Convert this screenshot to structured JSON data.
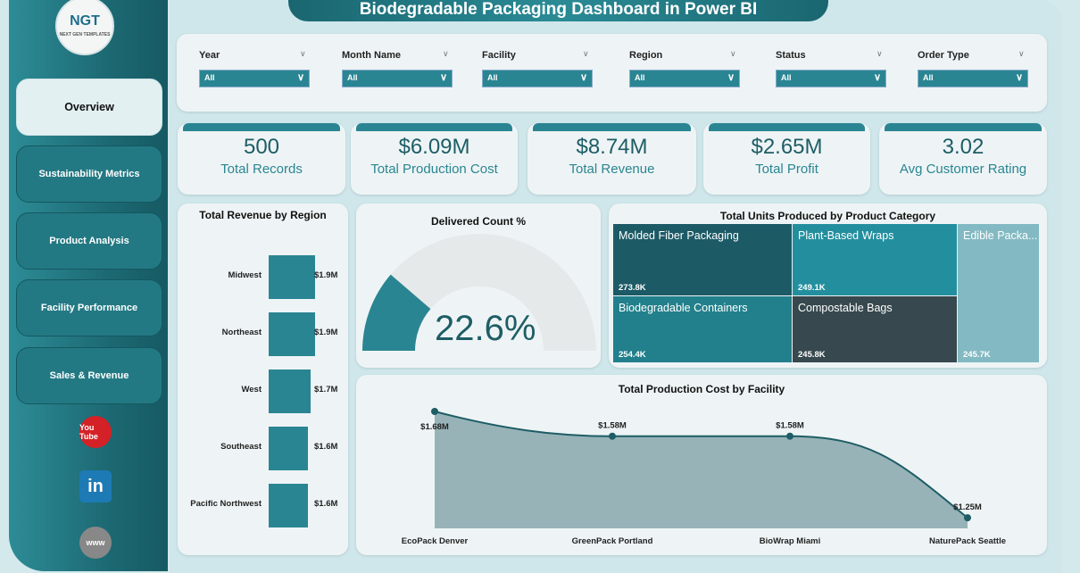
{
  "title": "Biodegradable Packaging Dashboard in Power BI",
  "logo": {
    "text": "NGT",
    "sub": "NEXT GEN TEMPLATES"
  },
  "nav": [
    {
      "label": "Overview",
      "active": true
    },
    {
      "label": "Sustainability Metrics"
    },
    {
      "label": "Product Analysis"
    },
    {
      "label": "Facility Performance"
    },
    {
      "label": "Sales & Revenue"
    }
  ],
  "social": [
    {
      "icon": "youtube-icon",
      "label": "You Tube"
    },
    {
      "icon": "linkedin-icon",
      "label": "in"
    },
    {
      "icon": "globe-www-icon",
      "label": "www"
    }
  ],
  "filters": [
    {
      "label": "Year",
      "value": "All"
    },
    {
      "label": "Month Name",
      "value": "All"
    },
    {
      "label": "Facility",
      "value": "All"
    },
    {
      "label": "Region",
      "value": "All"
    },
    {
      "label": "Status",
      "value": "All"
    },
    {
      "label": "Order Type",
      "value": "All"
    }
  ],
  "kpis": [
    {
      "value": "500",
      "label": "Total Records"
    },
    {
      "value": "$6.09M",
      "label": "Total Production Cost"
    },
    {
      "value": "$8.74M",
      "label": "Total Revenue"
    },
    {
      "value": "$2.65M",
      "label": "Total Profit"
    },
    {
      "value": "3.02",
      "label": "Avg Customer Rating"
    }
  ],
  "colors": {
    "accent": "#2a8592",
    "dark": "#1e5d66"
  },
  "chart_data": [
    {
      "type": "bar",
      "orientation": "horizontal",
      "title": "Total Revenue by Region",
      "categories": [
        "Midwest",
        "Northeast",
        "West",
        "Southeast",
        "Pacific Northwest"
      ],
      "values": [
        1.9,
        1.9,
        1.7,
        1.6,
        1.6
      ],
      "labels": [
        "$1.9M",
        "$1.9M",
        "$1.7M",
        "$1.6M",
        "$1.6M"
      ]
    },
    {
      "type": "gauge",
      "title": "Delivered Count %",
      "value": 22.6,
      "label": "22.6%"
    },
    {
      "type": "treemap",
      "title": "Total Units Produced by Product Category",
      "items": [
        {
          "name": "Molded Fiber Packaging",
          "value": "273.8K",
          "color": "#1c5a66"
        },
        {
          "name": "Plant-Based Wraps",
          "value": "249.1K",
          "color": "#238f9e"
        },
        {
          "name": "Edible Packa...",
          "value": "245.7K",
          "color": "#83b9c2"
        },
        {
          "name": "Biodegradable Containers",
          "value": "254.4K",
          "color": "#22808c"
        },
        {
          "name": "Compostable Bags",
          "value": "245.8K",
          "color": "#37494e"
        }
      ]
    },
    {
      "type": "area",
      "title": "Total Production Cost by Facility",
      "categories": [
        "EcoPack Denver",
        "GreenPack Portland",
        "BioWrap Miami",
        "NaturePack Seattle"
      ],
      "values": [
        1.68,
        1.58,
        1.58,
        1.25
      ],
      "labels": [
        "$1.68M",
        "$1.58M",
        "$1.58M",
        "$1.25M"
      ]
    }
  ]
}
